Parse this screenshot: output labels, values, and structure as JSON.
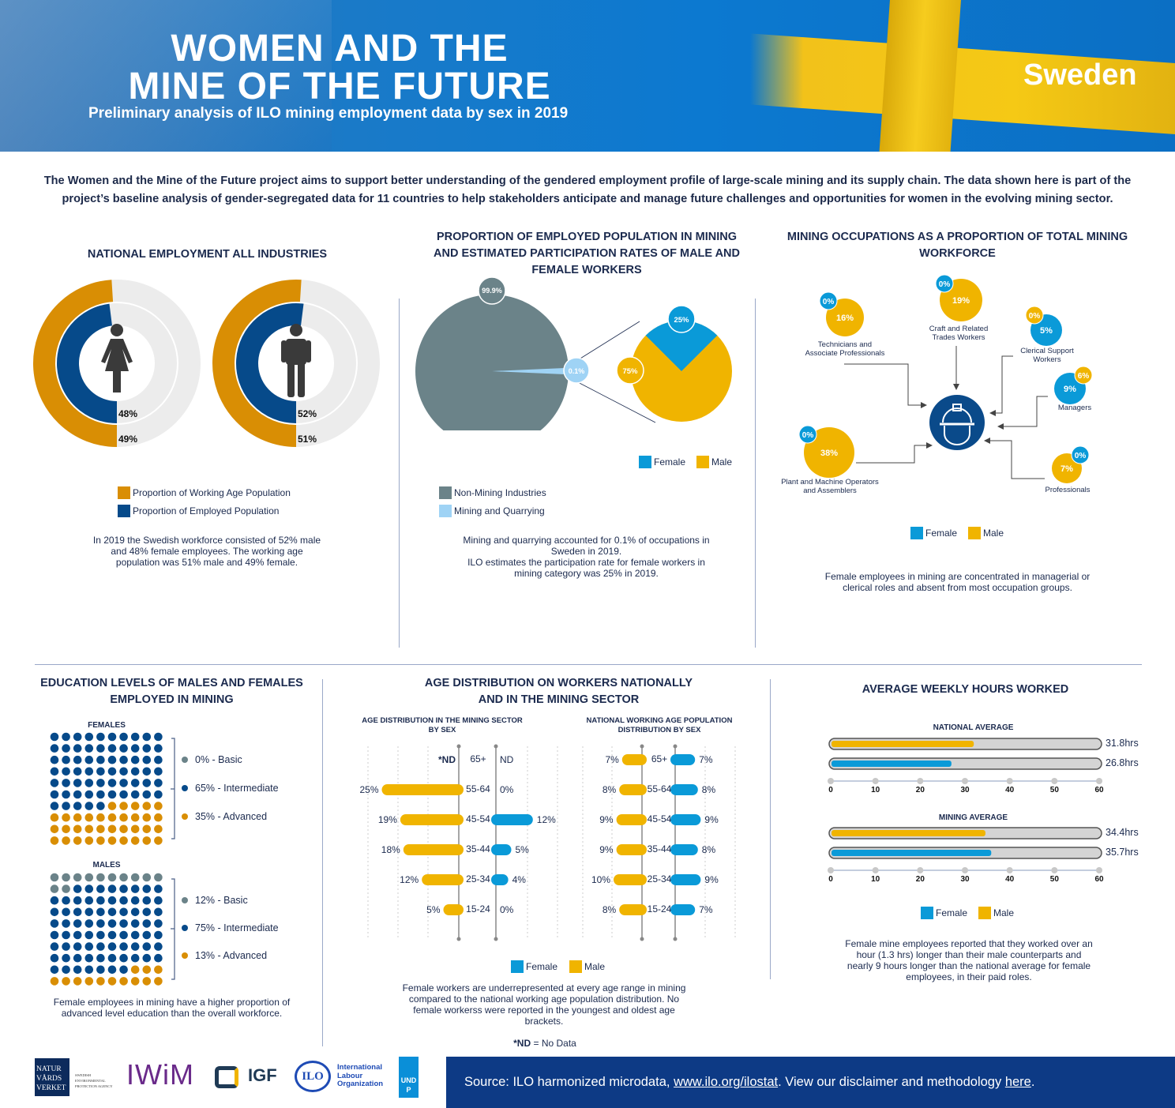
{
  "header": {
    "title_line1": "WOMEN AND THE",
    "title_line2": "MINE OF THE FUTURE",
    "subtitle": "Preliminary analysis of ILO mining employment data by sex in 2019",
    "country": "Sweden"
  },
  "intro": "The Women and the Mine of the Future project aims to support better understanding of the gendered employment profile of large-scale mining and its supply chain. The data shown here is part of the project’s baseline analysis of gender-segregated data for 11 countries to help stakeholders anticipate and manage future challenges and opportunities for women in the evolving mining sector.",
  "colors": {
    "orange": "#d98e04",
    "navy": "#064a8a",
    "blue": "#0a9ad8",
    "yellow": "#f0b400",
    "gray": "#6b8389",
    "light_blue": "#9fd3f5",
    "ring_bg": "#ececec"
  },
  "national": {
    "title": "NATIONAL EMPLOYMENT ALL INDUSTRIES",
    "female": {
      "icon": "female-icon",
      "employed_label": "48%",
      "employed": 48,
      "working_age_label": "49%",
      "working_age": 49
    },
    "male": {
      "icon": "male-icon",
      "employed_label": "52%",
      "employed": 52,
      "working_age_label": "51%",
      "working_age": 51
    },
    "legend": {
      "working_age": "Proportion of Working Age Population",
      "employed": "Proportion of Employed Population"
    },
    "note": "In 2019 the Swedish workforce consisted of 52% male and 48% female employees. The working age population was 51% male and 49% female."
  },
  "proportion": {
    "title_line1": "PROPORTION OF EMPLOYED POPULATION IN MINING",
    "title_line2": "AND ESTIMATED PARTICIPATION RATES OF MALE AND",
    "title_line3": "FEMALE WORKERS",
    "non_mining_label": "99.9%",
    "non_mining": 99.9,
    "mining_label": "0.1%",
    "mining": 0.1,
    "female_label": "25%",
    "female": 25,
    "male_label": "75%",
    "male": 75,
    "legend_female": "Female",
    "legend_male": "Male",
    "legend_non_mining": "Non-Mining Industries",
    "legend_mining": "Mining and Quarrying",
    "note_line1": "Mining and quarrying accounted for 0.1% of occupations in Sweden in 2019.",
    "note_line2": "ILO estimates the participation rate for female workers in mining category was 25% in 2019."
  },
  "occupations": {
    "title_line1": "MINING OCCUPATIONS AS A PROPORTION OF TOTAL MINING",
    "title_line2": "WORKFORCE",
    "hub_icon": "hard-hat-icon",
    "items": [
      {
        "name": "Technicians and Associate Professionals",
        "line1": "Technicians and",
        "line2": "Associate Professionals",
        "male": "16%",
        "female": "0%"
      },
      {
        "name": "Craft and Related Trades Workers",
        "line1": "Craft and Related",
        "line2": "Trades Workers",
        "male": "19%",
        "female": "0%"
      },
      {
        "name": "Clerical Support Workers",
        "line1": "Clerical Support",
        "line2": "Workers",
        "male": "0%",
        "female": "5%"
      },
      {
        "name": "Managers",
        "line1": "Managers",
        "line2": "",
        "male": "6%",
        "female": "9%"
      },
      {
        "name": "Plant and Machine Operators and Assemblers",
        "line1": "Plant and Machine Operators",
        "line2": "and Assemblers",
        "male": "38%",
        "female": "0%"
      },
      {
        "name": "Professionals",
        "line1": "Professionals",
        "line2": "",
        "male": "7%",
        "female": "0%"
      }
    ],
    "legend_female": "Female",
    "legend_male": "Male",
    "note_line1": "Female employees in mining are concentrated in managerial or",
    "note_line2": "clerical roles and absent from most occupation groups."
  },
  "education": {
    "title_line1": "EDUCATION LEVELS OF MALES AND FEMALES",
    "title_line2": "EMPLOYED IN MINING",
    "females": {
      "label": "FEMALES",
      "basic": 0,
      "intermediate": 65,
      "advanced": 35,
      "basic_label": "0% - Basic",
      "intermediate_label": "65% - Intermediate",
      "advanced_label": "35% - Advanced"
    },
    "males": {
      "label": "MALES",
      "basic": 12,
      "intermediate": 75,
      "advanced": 13,
      "basic_label": "12% - Basic",
      "intermediate_label": "75% - Intermediate",
      "advanced_label": "13% - Advanced"
    },
    "note_line1": "Female employees in mining have a higher proportion of",
    "note_line2": "advanced level education than the overall workforce."
  },
  "age": {
    "title_line1": "AGE DISTRIBUTION ON WORKERS NATIONALLY",
    "title_line2": "AND IN THE MINING SECTOR",
    "mining_title_line1": "AGE DISTRIBUTION IN THE MINING SECTOR",
    "mining_title_line2": "BY SEX",
    "national_title_line1": "NATIONAL WORKING AGE POPULATION",
    "national_title_line2": "DISTRIBUTION BY SEX",
    "legend_female": "Female",
    "legend_male": "Male",
    "note": "Female workers are underrepresented at every age range in mining compared to the national working age population distribution. No female workerss were reported in the youngest and oldest age brackets.",
    "nd_key": "*ND",
    "nd_text": " = No Data"
  },
  "hours": {
    "title": "AVERAGE WEEKLY HOURS WORKED",
    "national_title": "NATIONAL AVERAGE",
    "mining_title": "MINING AVERAGE",
    "legend_female": "Female",
    "legend_male": "Male",
    "note": "Female mine employees reported that they worked over an hour (1.3 hrs) longer than their male counterparts and nearly 9 hours longer than the national average for female employees, in their paid roles."
  },
  "footer": {
    "source_prefix": "Source: ILO harmonized microdata, ",
    "source_link": "www.ilo.org/ilostat",
    "source_mid": ". View our disclaimer and methodology ",
    "here_link": "here",
    "source_end": ".",
    "logos": {
      "naturvardsverket": "NATUR VÅRDS VERKET",
      "naturvardsverket_sub": "SWEDISH ENVIRONMENTAL PROTECTION AGENCY",
      "iwim": "IWiM",
      "igf": "IGF",
      "ilo": "International Labour Organization",
      "ilo_mark": "ILO",
      "undp": "UNDP"
    }
  },
  "chart_data": [
    {
      "type": "bar",
      "title": "AGE DISTRIBUTION IN THE MINING SECTOR BY SEX",
      "categories": [
        "65+",
        "55-64",
        "45-54",
        "35-44",
        "25-34",
        "15-24"
      ],
      "series": [
        {
          "name": "Male",
          "values": [
            null,
            25,
            19,
            18,
            12,
            5
          ],
          "labels": [
            "*ND",
            "25%",
            "19%",
            "18%",
            "12%",
            "5%"
          ]
        },
        {
          "name": "Female",
          "values": [
            null,
            0,
            12,
            5,
            4,
            0
          ],
          "labels": [
            "ND",
            "0%",
            "12%",
            "5%",
            "4%",
            "0%"
          ]
        }
      ]
    },
    {
      "type": "bar",
      "title": "NATIONAL WORKING AGE POPULATION DISTRIBUTION BY SEX",
      "categories": [
        "65+",
        "55-64",
        "45-54",
        "35-44",
        "25-34",
        "15-24"
      ],
      "series": [
        {
          "name": "Male",
          "values": [
            7,
            8,
            9,
            9,
            10,
            8
          ],
          "labels": [
            "7%",
            "8%",
            "9%",
            "9%",
            "10%",
            "8%"
          ]
        },
        {
          "name": "Female",
          "values": [
            7,
            8,
            9,
            8,
            9,
            7
          ],
          "labels": [
            "7%",
            "8%",
            "9%",
            "8%",
            "9%",
            "7%"
          ]
        }
      ]
    },
    {
      "type": "bar",
      "title": "NATIONAL AVERAGE",
      "xlim": [
        0,
        60
      ],
      "ticks": [
        "0",
        "10",
        "20",
        "30",
        "40",
        "50",
        "60"
      ],
      "series": [
        {
          "name": "Male",
          "value": 31.8,
          "label": "31.8hrs"
        },
        {
          "name": "Female",
          "value": 26.8,
          "label": "26.8hrs"
        }
      ]
    },
    {
      "type": "bar",
      "title": "MINING AVERAGE",
      "xlim": [
        0,
        60
      ],
      "ticks": [
        "0",
        "10",
        "20",
        "30",
        "40",
        "50",
        "60"
      ],
      "series": [
        {
          "name": "Male",
          "value": 34.4,
          "label": "34.4hrs"
        },
        {
          "name": "Female",
          "value": 35.7,
          "label": "35.7hrs"
        }
      ]
    }
  ]
}
